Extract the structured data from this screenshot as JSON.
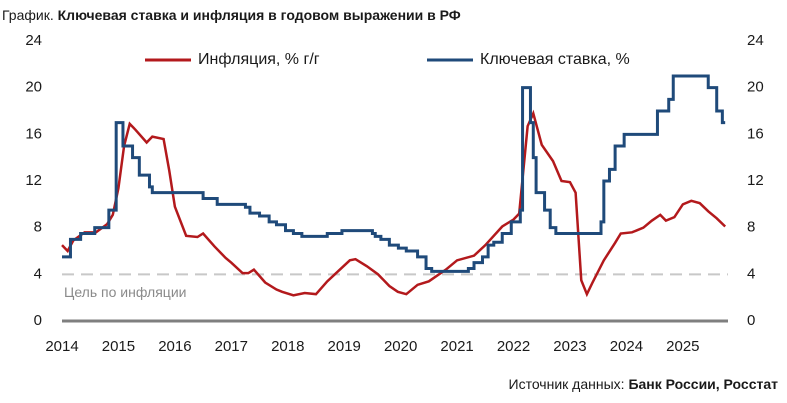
{
  "chart_data": {
    "type": "line",
    "title_prefix": "График.",
    "title": "Ключевая ставка и инфляция в годовом выражении в РФ",
    "source_prefix": "Источник данных:",
    "source": "Банк России, Росстат",
    "xlim": [
      2014,
      2025.8
    ],
    "xticks": [
      2014,
      2015,
      2016,
      2017,
      2018,
      2019,
      2020,
      2021,
      2022,
      2023,
      2024,
      2025
    ],
    "ylim": [
      0,
      24
    ],
    "yticks": [
      0,
      4,
      8,
      12,
      16,
      20,
      24
    ],
    "y2lim": [
      0,
      24
    ],
    "y2ticks": [
      0,
      4,
      8,
      12,
      16,
      20,
      24
    ],
    "target": 4,
    "target_label": "Цель по инфляции",
    "series": [
      {
        "name": "Инфляция, % г/г",
        "color": "#b3191c",
        "step": false,
        "x": [
          2014.0,
          2014.1,
          2014.2,
          2014.4,
          2014.6,
          2014.8,
          2014.9,
          2015.0,
          2015.1,
          2015.2,
          2015.3,
          2015.5,
          2015.6,
          2015.8,
          2015.9,
          2016.0,
          2016.2,
          2016.4,
          2016.5,
          2016.7,
          2016.9,
          2017.0,
          2017.2,
          2017.3,
          2017.4,
          2017.6,
          2017.8,
          2017.9,
          2018.1,
          2018.3,
          2018.5,
          2018.7,
          2018.9,
          2019.1,
          2019.2,
          2019.4,
          2019.6,
          2019.8,
          2019.95,
          2020.1,
          2020.3,
          2020.5,
          2020.8,
          2021.0,
          2021.3,
          2021.5,
          2021.8,
          2022.0,
          2022.1,
          2022.25,
          2022.35,
          2022.5,
          2022.7,
          2022.85,
          2023.0,
          2023.1,
          2023.2,
          2023.3,
          2023.4,
          2023.6,
          2023.8,
          2023.9,
          2024.1,
          2024.3,
          2024.45,
          2024.6,
          2024.7,
          2024.85,
          2025.0,
          2025.15,
          2025.3,
          2025.45,
          2025.6,
          2025.75
        ],
        "values": [
          6.5,
          6.0,
          6.9,
          7.6,
          7.6,
          8.3,
          9.1,
          11.4,
          15.0,
          16.9,
          16.4,
          15.3,
          15.8,
          15.6,
          12.9,
          9.8,
          7.3,
          7.2,
          7.5,
          6.4,
          5.4,
          5.0,
          4.1,
          4.1,
          4.4,
          3.3,
          2.7,
          2.5,
          2.2,
          2.4,
          2.3,
          3.4,
          4.3,
          5.2,
          5.3,
          4.7,
          4.0,
          3.0,
          2.5,
          2.3,
          3.1,
          3.4,
          4.4,
          5.2,
          5.6,
          6.5,
          8.1,
          8.7,
          9.2,
          16.7,
          17.8,
          15.1,
          13.7,
          12.0,
          11.9,
          11.0,
          3.5,
          2.3,
          3.3,
          5.2,
          6.7,
          7.5,
          7.6,
          8.0,
          8.6,
          9.1,
          8.6,
          8.9,
          10.0,
          10.3,
          10.1,
          9.4,
          8.8,
          8.1
        ]
      },
      {
        "name": "Ключевая ставка, %",
        "color": "#1f4a7a",
        "step": true,
        "x": [
          2014.0,
          2014.15,
          2014.33,
          2014.58,
          2014.83,
          2014.96,
          2015.08,
          2015.25,
          2015.37,
          2015.55,
          2015.6,
          2016.5,
          2016.75,
          2017.25,
          2017.33,
          2017.5,
          2017.67,
          2017.8,
          2017.96,
          2018.1,
          2018.25,
          2018.7,
          2018.96,
          2019.5,
          2019.55,
          2019.65,
          2019.8,
          2019.96,
          2020.1,
          2020.3,
          2020.45,
          2020.55,
          2021.2,
          2021.3,
          2021.45,
          2021.55,
          2021.65,
          2021.8,
          2021.96,
          2022.12,
          2022.16,
          2022.3,
          2022.35,
          2022.4,
          2022.55,
          2022.65,
          2022.75,
          2023.55,
          2023.6,
          2023.7,
          2023.8,
          2023.96,
          2024.55,
          2024.75,
          2024.83,
          2025.45,
          2025.6,
          2025.7,
          2025.75
        ],
        "values": [
          5.5,
          7.0,
          7.5,
          8.0,
          9.5,
          17.0,
          15.0,
          14.0,
          12.5,
          11.5,
          11.0,
          10.5,
          10.0,
          9.75,
          9.25,
          9.0,
          8.5,
          8.25,
          7.75,
          7.5,
          7.25,
          7.5,
          7.75,
          7.5,
          7.25,
          7.0,
          6.5,
          6.25,
          6.0,
          5.5,
          4.5,
          4.25,
          4.5,
          5.0,
          5.5,
          6.5,
          6.75,
          7.5,
          8.5,
          9.5,
          20.0,
          17.0,
          14.0,
          11.0,
          9.5,
          8.0,
          7.5,
          8.5,
          12.0,
          13.0,
          15.0,
          16.0,
          18.0,
          19.0,
          21.0,
          20.0,
          18.0,
          17.0,
          17.0
        ]
      }
    ]
  }
}
